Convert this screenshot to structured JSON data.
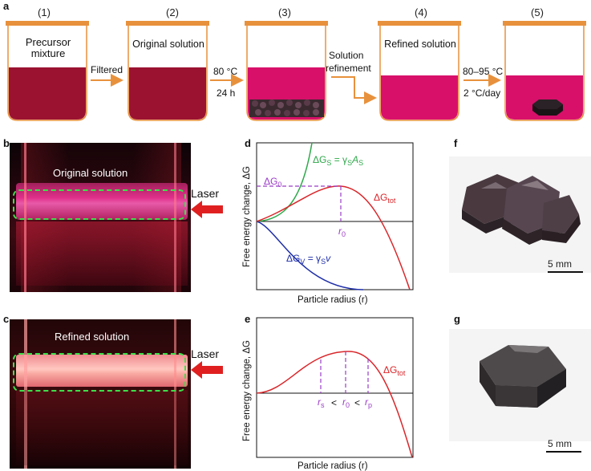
{
  "panel_letters": {
    "a": "a",
    "b": "b",
    "c": "c",
    "d": "d",
    "e": "e",
    "f": "f",
    "g": "g"
  },
  "steps": [
    {
      "num": "(1)",
      "label_line1": "Precursor",
      "label_line2": "mixture"
    },
    {
      "num": "(2)",
      "label_line1": "Original solution",
      "label_line2": ""
    },
    {
      "num": "(3)",
      "label_line1": "",
      "label_line2": ""
    },
    {
      "num": "(4)",
      "label_line1": "Refined solution",
      "label_line2": ""
    },
    {
      "num": "(5)",
      "label_line1": "",
      "label_line2": ""
    }
  ],
  "arrows": {
    "a1": {
      "line1": "Filtered",
      "line2": ""
    },
    "a2": {
      "line1": "80 °C",
      "line2": "24 h"
    },
    "a3": {
      "line1": "Solution",
      "line2": "refinement"
    },
    "a4": {
      "line1": "80–95 °C",
      "line2": "2 °C/day"
    }
  },
  "photo_b": {
    "caption": "Original solution",
    "laser": "Laser"
  },
  "photo_c": {
    "caption": "Refined solution",
    "laser": "Laser"
  },
  "scale_f": "5 mm",
  "scale_g": "5 mm",
  "colors": {
    "lid": "#e8913c",
    "jar_outline": "#e8913c",
    "arrow": "#e8913c",
    "dark_solution": "#9b1230",
    "bright_solution": "#d8106a",
    "green": "#2ea84a",
    "red": "#d9262a",
    "blue": "#1f2fa8",
    "purple": "#9b3cc8"
  },
  "plot_d": {
    "ylabel": "Free energy change, ΔG",
    "xlabel": "Particle radius (r)",
    "g0_label": "ΔG",
    "g0_sub": "0",
    "gs_label": "ΔG",
    "gs_sub": "S",
    "gs_eq": " = γ",
    "gs_eq_sub": "S",
    "gs_eq_tail": "A",
    "gs_eq_tail_sub": "S",
    "gtot_label": "ΔG",
    "gtot_sub": "tot",
    "gv_label": "ΔG",
    "gv_sub": "V",
    "gv_eq": " = γ",
    "gv_eq_sub": "S",
    "gv_eq_tail": "v",
    "r0_label": "r",
    "r0_sub": "0"
  },
  "plot_e": {
    "ylabel": "Free energy change, ΔG",
    "xlabel": "Particle radius (r)",
    "gtot_label": "ΔG",
    "gtot_sub": "tot",
    "rs_label": "r",
    "rs_sub": "s",
    "lt1": "<",
    "r0_label": "r",
    "r0_sub": "0",
    "lt2": "<",
    "rp_label": "r",
    "rp_sub": "p"
  }
}
